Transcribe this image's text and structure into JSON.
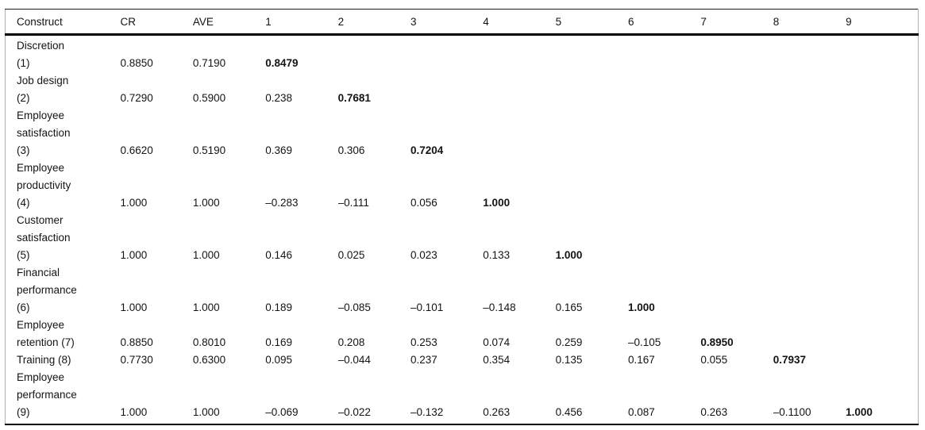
{
  "table": {
    "header": [
      "Construct",
      "CR",
      "AVE",
      "1",
      "2",
      "3",
      "4",
      "5",
      "6",
      "7",
      "8",
      "9"
    ],
    "rows": [
      {
        "construct": "Discretion\n(1)",
        "cells": [
          "0.8850",
          "0.7190",
          "0.8479",
          "",
          "",
          "",
          "",
          "",
          "",
          "",
          ""
        ],
        "bold_index": 2
      },
      {
        "construct": "Job design\n(2)",
        "cells": [
          "0.7290",
          "0.5900",
          "0.238",
          "0.7681",
          "",
          "",
          "",
          "",
          "",
          "",
          ""
        ],
        "bold_index": 3
      },
      {
        "construct": "Employee\nsatisfaction\n(3)",
        "cells": [
          "0.6620",
          "0.5190",
          "0.369",
          "0.306",
          "0.7204",
          "",
          "",
          "",
          "",
          "",
          ""
        ],
        "bold_index": 4
      },
      {
        "construct": "Employee\nproductivity\n(4)",
        "cells": [
          "1.000",
          "1.000",
          "–0.283",
          "–0.111",
          "0.056",
          "1.000",
          "",
          "",
          "",
          "",
          ""
        ],
        "bold_index": 5
      },
      {
        "construct": "Customer\nsatisfaction\n(5)",
        "cells": [
          "1.000",
          "1.000",
          "0.146",
          "0.025",
          "0.023",
          "0.133",
          "1.000",
          "",
          "",
          "",
          ""
        ],
        "bold_index": 6
      },
      {
        "construct": "Financial\nperformance\n(6)",
        "cells": [
          "1.000",
          "1.000",
          "0.189",
          "–0.085",
          "–0.101",
          "–0.148",
          "0.165",
          "1.000",
          "",
          "",
          ""
        ],
        "bold_index": 7
      },
      {
        "construct": "Employee\nretention (7)",
        "cells": [
          "0.8850",
          "0.8010",
          "0.169",
          "0.208",
          "0.253",
          "0.074",
          "0.259",
          "–0.105",
          "0.8950",
          "",
          ""
        ],
        "bold_index": 8
      },
      {
        "construct": "Training (8)",
        "cells": [
          "0.7730",
          "0.6300",
          "0.095",
          "–0.044",
          "0.237",
          "0.354",
          "0.135",
          "0.167",
          "0.055",
          "0.7937",
          ""
        ],
        "bold_index": 9
      },
      {
        "construct": "Employee\nperformance\n(9)",
        "cells": [
          "1.000",
          "1.000",
          "–0.069",
          "–0.022",
          "–0.132",
          "0.263",
          "0.456",
          "0.087",
          "0.263",
          "–0.1100",
          "1.000"
        ],
        "bold_index": 10
      }
    ]
  },
  "colors": {
    "text": "#141414",
    "heavy_rule": "#000000",
    "frame": "#b2b2b2",
    "background": "#ffffff"
  }
}
